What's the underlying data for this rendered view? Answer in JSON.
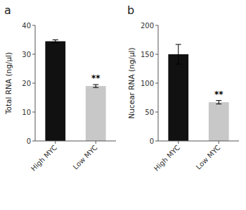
{
  "chart_data": [
    {
      "type": "bar",
      "title": "a",
      "categories": [
        "High MYC",
        "Low MYC"
      ],
      "values": [
        34.5,
        19.0
      ],
      "errors": [
        0.5,
        0.5
      ],
      "colors": [
        "#111111",
        "#c8c8c8"
      ],
      "ylabel": "Total RNA (ng/μl)",
      "ylim": [
        0,
        40
      ],
      "yticks": [
        0,
        10,
        20,
        30,
        40
      ],
      "annotations": [
        {
          "text": "**",
          "x": "Low MYC"
        }
      ]
    },
    {
      "type": "bar",
      "title": "b",
      "categories": [
        "High MYC",
        "Low MYC"
      ],
      "values": [
        150.0,
        67.0
      ],
      "errors": [
        17.0,
        3.0
      ],
      "colors": [
        "#111111",
        "#c8c8c8"
      ],
      "ylabel": "Nucear RNA (ng/μl)",
      "ylim": [
        0,
        200
      ],
      "yticks": [
        0,
        50,
        100,
        150,
        200
      ],
      "annotations": [
        {
          "text": "**",
          "x": "Low MYC"
        }
      ]
    }
  ]
}
